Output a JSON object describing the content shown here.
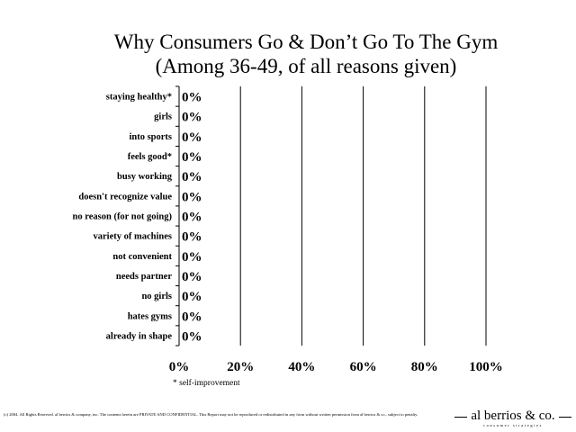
{
  "chart_data": {
    "type": "bar",
    "orientation": "horizontal",
    "title": "Why Consumers Go & Don’t Go To The Gym",
    "subtitle": "(Among 36-49, of all reasons given)",
    "categories": [
      "staying healthy*",
      "girls",
      "into sports",
      "feels good*",
      "busy working",
      "doesn't recognize value",
      "no reason (for not going)",
      "variety of machines",
      "not convenient",
      "needs partner",
      "no girls",
      "hates gyms",
      "already in shape"
    ],
    "values": [
      0,
      0,
      0,
      0,
      0,
      0,
      0,
      0,
      0,
      0,
      0,
      0,
      0
    ],
    "data_labels": [
      "0%",
      "0%",
      "0%",
      "0%",
      "0%",
      "0%",
      "0%",
      "0%",
      "0%",
      "0%",
      "0%",
      "0%",
      "0%"
    ],
    "xlim": [
      0,
      100
    ],
    "x_ticks": [
      0,
      20,
      40,
      60,
      80,
      100
    ],
    "x_tick_labels": [
      "0%",
      "20%",
      "40%",
      "60%",
      "80%",
      "100%"
    ],
    "grid": "vertical",
    "legend": "none"
  },
  "footnote": "* self-improvement",
  "copyright": "(c) 2004. All Rights Reserved. al berrios & company, inc. The contents herein are PRIVATE AND CONFIDENTIAL. This Report may not be reproduced or redistributed in any form without written permission from al berrios & co., subject to penalty.",
  "logo": {
    "name": "al berrios & co.",
    "tagline": "consumer strategies"
  },
  "colors": {
    "grid": "#000000",
    "text": "#000000",
    "background": "#ffffff"
  }
}
